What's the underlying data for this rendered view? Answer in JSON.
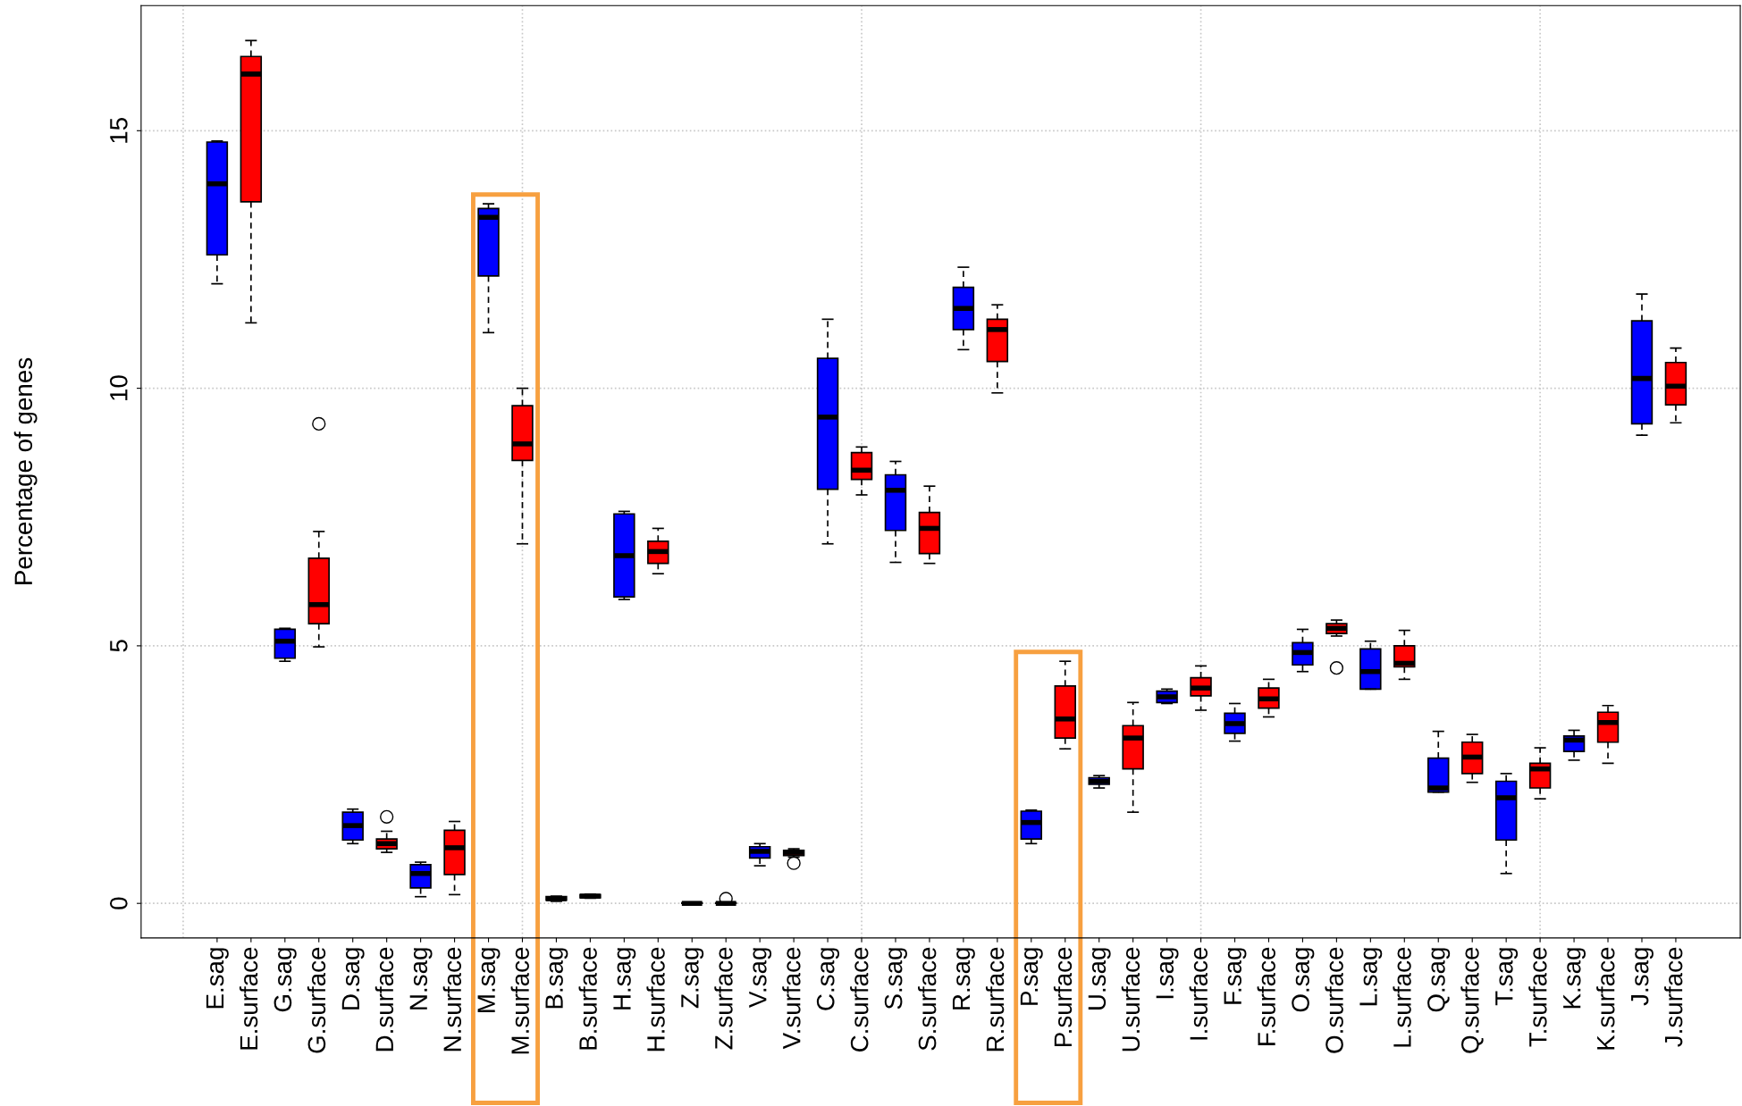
{
  "chart_data": {
    "type": "box",
    "ylabel": "Percentage of genes",
    "categories": [
      "E.sag",
      "E.surface",
      "G.sag",
      "G.surface",
      "D.sag",
      "D.surface",
      "N.sag",
      "N.surface",
      "M.sag",
      "M.surface",
      "B.sag",
      "B.surface",
      "H.sag",
      "H.surface",
      "Z.sag",
      "Z.surface",
      "V.sag",
      "V.surface",
      "C.sag",
      "C.surface",
      "S.sag",
      "S.surface",
      "R.sag",
      "R.surface",
      "P.sag",
      "P.surface",
      "U.sag",
      "U.surface",
      "I.sag",
      "I.surface",
      "F.sag",
      "F.surface",
      "O.sag",
      "O.surface",
      "L.sag",
      "L.surface",
      "Q.sag",
      "Q.surface",
      "T.sag",
      "T.surface",
      "K.sag",
      "K.surface",
      "J.sag",
      "J.surface"
    ],
    "colors": [
      "#0000ff",
      "#ff0000",
      "#0000ff",
      "#ff0000",
      "#0000ff",
      "#ff0000",
      "#0000ff",
      "#ff0000",
      "#0000ff",
      "#ff0000",
      "#0000ff",
      "#ff0000",
      "#0000ff",
      "#ff0000",
      "#0000ff",
      "#ff0000",
      "#0000ff",
      "#ff0000",
      "#0000ff",
      "#ff0000",
      "#0000ff",
      "#ff0000",
      "#0000ff",
      "#ff0000",
      "#0000ff",
      "#ff0000",
      "#0000ff",
      "#ff0000",
      "#0000ff",
      "#ff0000",
      "#0000ff",
      "#ff0000",
      "#0000ff",
      "#ff0000",
      "#0000ff",
      "#ff0000",
      "#0000ff",
      "#ff0000",
      "#0000ff",
      "#ff0000",
      "#0000ff",
      "#ff0000",
      "#0000ff",
      "#ff0000"
    ],
    "boxes": [
      {
        "low": 12.03,
        "q1": 12.59,
        "median": 13.97,
        "q3": 14.78,
        "high": 14.8
      },
      {
        "low": 11.27,
        "q1": 13.62,
        "median": 16.1,
        "q3": 16.44,
        "high": 16.75
      },
      {
        "low": 4.7,
        "q1": 4.76,
        "median": 5.09,
        "q3": 5.32,
        "high": 5.34
      },
      {
        "low": 4.98,
        "q1": 5.43,
        "median": 5.8,
        "q3": 6.7,
        "high": 7.22,
        "outliers": [
          9.31
        ]
      },
      {
        "low": 1.16,
        "q1": 1.23,
        "median": 1.51,
        "q3": 1.77,
        "high": 1.83
      },
      {
        "low": 0.99,
        "q1": 1.06,
        "median": 1.16,
        "q3": 1.25,
        "high": 1.4,
        "outliers": [
          1.68
        ]
      },
      {
        "low": 0.13,
        "q1": 0.3,
        "median": 0.58,
        "q3": 0.75,
        "high": 0.8
      },
      {
        "low": 0.17,
        "q1": 0.56,
        "median": 1.08,
        "q3": 1.42,
        "high": 1.59
      },
      {
        "low": 11.08,
        "q1": 12.18,
        "median": 13.32,
        "q3": 13.49,
        "high": 13.58
      },
      {
        "low": 6.98,
        "q1": 8.6,
        "median": 8.92,
        "q3": 9.66,
        "high": 10.0
      },
      {
        "low": 0.04,
        "q1": 0.06,
        "median": 0.09,
        "q3": 0.13,
        "high": 0.14
      },
      {
        "low": 0.1,
        "q1": 0.11,
        "median": 0.14,
        "q3": 0.17,
        "high": 0.18
      },
      {
        "low": 5.9,
        "q1": 5.95,
        "median": 6.75,
        "q3": 7.56,
        "high": 7.61
      },
      {
        "low": 6.4,
        "q1": 6.6,
        "median": 6.83,
        "q3": 7.03,
        "high": 7.28
      },
      {
        "low": 0.0,
        "q1": 0.0,
        "median": 0.0,
        "q3": 0.01,
        "high": 0.02
      },
      {
        "low": 0.0,
        "q1": 0.0,
        "median": 0.0,
        "q3": 0.01,
        "high": 0.02,
        "outliers": [
          0.09
        ]
      },
      {
        "low": 0.73,
        "q1": 0.88,
        "median": 1.01,
        "q3": 1.1,
        "high": 1.16
      },
      {
        "low": 0.9,
        "q1": 0.93,
        "median": 0.99,
        "q3": 1.03,
        "high": 1.06,
        "outliers": [
          0.78
        ]
      },
      {
        "low": 6.98,
        "q1": 8.04,
        "median": 9.44,
        "q3": 10.58,
        "high": 11.34
      },
      {
        "low": 7.93,
        "q1": 8.23,
        "median": 8.41,
        "q3": 8.75,
        "high": 8.86
      },
      {
        "low": 6.62,
        "q1": 7.24,
        "median": 8.02,
        "q3": 8.32,
        "high": 8.58
      },
      {
        "low": 6.6,
        "q1": 6.79,
        "median": 7.28,
        "q3": 7.59,
        "high": 8.1
      },
      {
        "low": 10.75,
        "q1": 11.14,
        "median": 11.55,
        "q3": 11.96,
        "high": 12.35
      },
      {
        "low": 9.91,
        "q1": 10.52,
        "median": 11.14,
        "q3": 11.34,
        "high": 11.62
      },
      {
        "low": 1.16,
        "q1": 1.25,
        "median": 1.57,
        "q3": 1.79,
        "high": 1.81
      },
      {
        "low": 3.0,
        "q1": 3.21,
        "median": 3.58,
        "q3": 4.22,
        "high": 4.7
      },
      {
        "low": 2.24,
        "q1": 2.31,
        "median": 2.37,
        "q3": 2.44,
        "high": 2.48
      },
      {
        "low": 1.77,
        "q1": 2.61,
        "median": 3.21,
        "q3": 3.45,
        "high": 3.9
      },
      {
        "low": 3.88,
        "q1": 3.9,
        "median": 4.01,
        "q3": 4.12,
        "high": 4.16
      },
      {
        "low": 3.75,
        "q1": 4.03,
        "median": 4.18,
        "q3": 4.38,
        "high": 4.61
      },
      {
        "low": 3.15,
        "q1": 3.3,
        "median": 3.49,
        "q3": 3.69,
        "high": 3.88
      },
      {
        "low": 3.62,
        "q1": 3.79,
        "median": 3.97,
        "q3": 4.18,
        "high": 4.35
      },
      {
        "low": 4.5,
        "q1": 4.63,
        "median": 4.87,
        "q3": 5.06,
        "high": 5.32
      },
      {
        "low": 5.19,
        "q1": 5.24,
        "median": 5.34,
        "q3": 5.43,
        "high": 5.5,
        "outliers": [
          4.57
        ]
      },
      {
        "low": 4.16,
        "q1": 4.16,
        "median": 4.5,
        "q3": 4.94,
        "high": 5.09
      },
      {
        "low": 4.35,
        "q1": 4.59,
        "median": 4.66,
        "q3": 5.0,
        "high": 5.3
      },
      {
        "low": 2.16,
        "q1": 2.16,
        "median": 2.24,
        "q3": 2.82,
        "high": 3.34
      },
      {
        "low": 2.35,
        "q1": 2.52,
        "median": 2.84,
        "q3": 3.13,
        "high": 3.28
      },
      {
        "low": 0.58,
        "q1": 1.23,
        "median": 2.05,
        "q3": 2.37,
        "high": 2.52
      },
      {
        "low": 2.03,
        "q1": 2.24,
        "median": 2.61,
        "q3": 2.72,
        "high": 3.02
      },
      {
        "low": 2.78,
        "q1": 2.95,
        "median": 3.17,
        "q3": 3.25,
        "high": 3.36
      },
      {
        "low": 2.72,
        "q1": 3.13,
        "median": 3.51,
        "q3": 3.71,
        "high": 3.84
      },
      {
        "low": 9.09,
        "q1": 9.31,
        "median": 10.19,
        "q3": 11.31,
        "high": 11.83
      },
      {
        "low": 9.33,
        "q1": 9.68,
        "median": 10.04,
        "q3": 10.5,
        "high": 10.78
      }
    ],
    "ylim": [
      -0.67,
      17.43
    ],
    "yticks": [
      0,
      5,
      10,
      15
    ],
    "grid": true
  }
}
